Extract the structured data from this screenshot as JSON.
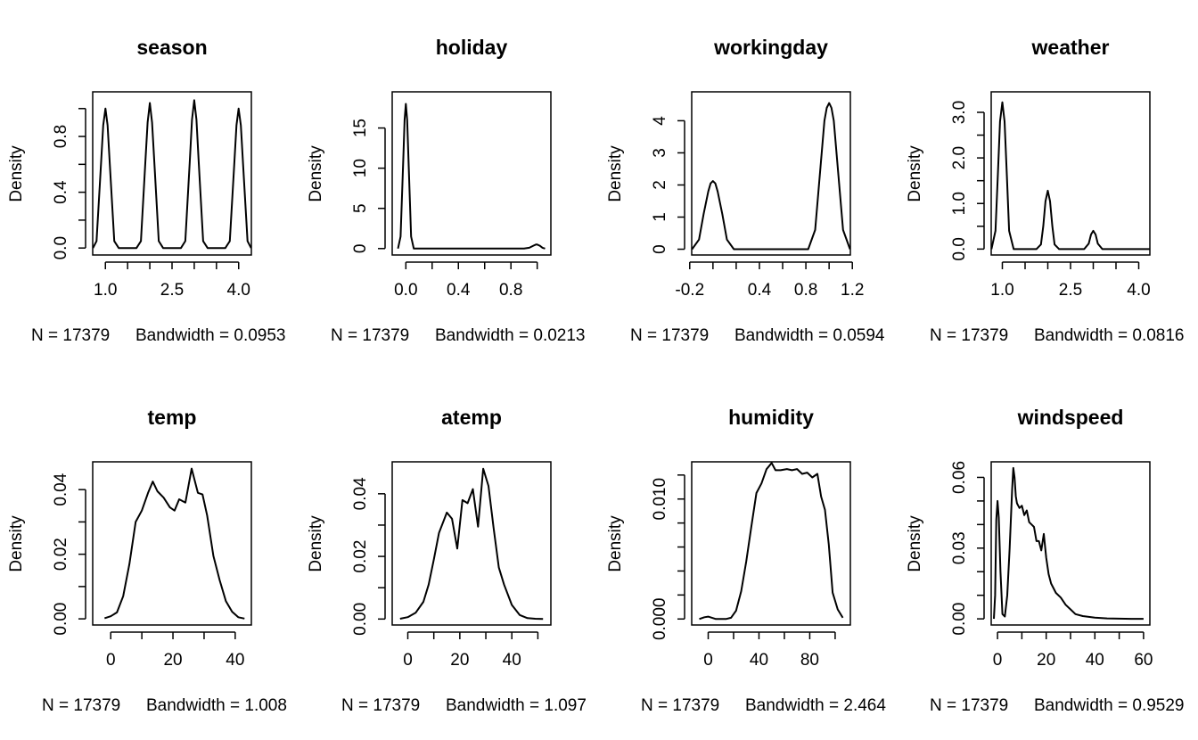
{
  "chart_data": [
    {
      "type": "line",
      "title": "season",
      "ylabel": "Density",
      "xlabel_n": "N = 17379",
      "xlabel_bw": "Bandwidth = 0.0953",
      "xlim": [
        0.714,
        4.286
      ],
      "ylim": [
        -0.05,
        1.12
      ],
      "xticks": [
        1,
        1.5,
        2,
        2.5,
        3,
        3.5,
        4
      ],
      "xtick_labels": [
        "1.0",
        "",
        "",
        "2.5",
        "",
        "",
        "4.0"
      ],
      "yticks": [
        0,
        0.2,
        0.4,
        0.6,
        0.8,
        1.0
      ],
      "ytick_labels": [
        "0.0",
        "",
        "0.4",
        "",
        "0.8",
        ""
      ],
      "x": [
        0.72,
        0.8,
        0.9,
        0.95,
        1.0,
        1.05,
        1.1,
        1.2,
        1.3,
        1.5,
        1.7,
        1.8,
        1.9,
        1.95,
        2.0,
        2.05,
        2.1,
        2.2,
        2.3,
        2.5,
        2.7,
        2.8,
        2.9,
        2.95,
        3.0,
        3.05,
        3.1,
        3.2,
        3.3,
        3.5,
        3.7,
        3.8,
        3.9,
        3.95,
        4.0,
        4.05,
        4.1,
        4.2,
        4.28
      ],
      "y": [
        0.0,
        0.05,
        0.6,
        0.88,
        1.0,
        0.88,
        0.6,
        0.05,
        0.0,
        0.0,
        0.0,
        0.05,
        0.62,
        0.9,
        1.04,
        0.9,
        0.62,
        0.05,
        0.0,
        0.0,
        0.0,
        0.05,
        0.62,
        0.92,
        1.06,
        0.92,
        0.62,
        0.05,
        0.0,
        0.0,
        0.0,
        0.05,
        0.6,
        0.88,
        1.0,
        0.88,
        0.6,
        0.05,
        0.0
      ]
    },
    {
      "type": "line",
      "title": "holiday",
      "ylabel": "Density",
      "xlabel_n": "N = 17379",
      "xlabel_bw": "Bandwidth = 0.0213",
      "xlim": [
        -0.104,
        1.104
      ],
      "ylim": [
        -0.8,
        19.5
      ],
      "xticks": [
        0,
        0.2,
        0.4,
        0.6,
        0.8,
        1.0
      ],
      "xtick_labels": [
        "0.0",
        "",
        "0.4",
        "",
        "0.8",
        ""
      ],
      "yticks": [
        0,
        5,
        10,
        15
      ],
      "ytick_labels": [
        "0",
        "5",
        "10",
        "15"
      ],
      "x": [
        -0.06,
        -0.04,
        -0.02,
        -0.01,
        0.0,
        0.01,
        0.02,
        0.04,
        0.06,
        0.1,
        0.5,
        0.9,
        0.94,
        0.97,
        0.99,
        1.0,
        1.02,
        1.04,
        1.06
      ],
      "y": [
        0.0,
        1.5,
        11.0,
        16.0,
        18.0,
        16.0,
        11.0,
        1.5,
        0.0,
        0.0,
        0.0,
        0.0,
        0.1,
        0.35,
        0.5,
        0.5,
        0.35,
        0.1,
        0.0
      ]
    },
    {
      "type": "line",
      "title": "workingday",
      "ylabel": "Density",
      "xlabel_n": "N = 17379",
      "xlabel_bw": "Bandwidth = 0.0594",
      "xlim": [
        -0.183,
        1.183
      ],
      "ylim": [
        -0.18,
        4.9
      ],
      "xticks": [
        -0.2,
        0.0,
        0.2,
        0.4,
        0.6,
        0.8,
        1.0,
        1.2
      ],
      "xtick_labels": [
        "-0.2",
        "",
        "",
        "0.4",
        "",
        "0.8",
        "",
        "1.2"
      ],
      "yticks": [
        0,
        1,
        2,
        3,
        4
      ],
      "ytick_labels": [
        "0",
        "1",
        "2",
        "3",
        "4"
      ],
      "x": [
        -0.18,
        -0.12,
        -0.08,
        -0.04,
        -0.02,
        0.0,
        0.02,
        0.04,
        0.08,
        0.12,
        0.18,
        0.5,
        0.82,
        0.88,
        0.92,
        0.96,
        0.98,
        1.0,
        1.02,
        1.04,
        1.08,
        1.12,
        1.18
      ],
      "y": [
        0.0,
        0.3,
        1.1,
        1.8,
        2.05,
        2.12,
        2.05,
        1.8,
        1.1,
        0.3,
        0.0,
        0.0,
        0.0,
        0.6,
        2.3,
        4.0,
        4.4,
        4.55,
        4.4,
        4.0,
        2.3,
        0.6,
        0.0
      ]
    },
    {
      "type": "line",
      "title": "weather",
      "ylabel": "Density",
      "xlabel_n": "N = 17379",
      "xlabel_bw": "Bandwidth = 0.0816",
      "xlim": [
        0.755,
        4.245
      ],
      "ylim": [
        -0.13,
        3.45
      ],
      "xticks": [
        1,
        1.5,
        2,
        2.5,
        3,
        3.5,
        4
      ],
      "xtick_labels": [
        "1.0",
        "",
        "",
        "2.5",
        "",
        "",
        "4.0"
      ],
      "yticks": [
        0,
        0.5,
        1.0,
        1.5,
        2.0,
        2.5,
        3.0
      ],
      "ytick_labels": [
        "0.0",
        "",
        "1.0",
        "",
        "2.0",
        "",
        "3.0"
      ],
      "x": [
        0.76,
        0.85,
        0.9,
        0.95,
        1.0,
        1.05,
        1.1,
        1.15,
        1.25,
        1.5,
        1.75,
        1.85,
        1.9,
        1.95,
        2.0,
        2.05,
        2.1,
        2.15,
        2.25,
        2.5,
        2.8,
        2.9,
        2.95,
        3.0,
        3.05,
        3.1,
        3.2,
        3.6,
        4.0,
        4.24
      ],
      "y": [
        0.0,
        0.4,
        1.6,
        2.8,
        3.22,
        2.8,
        1.6,
        0.4,
        0.0,
        0.0,
        0.0,
        0.1,
        0.5,
        1.05,
        1.28,
        1.05,
        0.5,
        0.1,
        0.0,
        0.0,
        0.0,
        0.12,
        0.32,
        0.4,
        0.32,
        0.12,
        0.0,
        0.0,
        0.0,
        0.0
      ]
    },
    {
      "type": "line",
      "title": "temp",
      "ylabel": "Density",
      "xlabel_n": "N = 17379",
      "xlabel_bw": "Bandwidth = 1.008",
      "xlim": [
        -5.8,
        45.2
      ],
      "ylim": [
        -0.0019,
        0.0486
      ],
      "xticks": [
        0,
        10,
        20,
        30,
        40
      ],
      "xtick_labels": [
        "0",
        "",
        "20",
        "",
        "40"
      ],
      "yticks": [
        0,
        0.01,
        0.02,
        0.03,
        0.04
      ],
      "ytick_labels": [
        "0.00",
        "",
        "0.02",
        "",
        "0.04"
      ],
      "x": [
        -2,
        0,
        2,
        4,
        6,
        8,
        10,
        12,
        13.5,
        15,
        17,
        19,
        20.5,
        22,
        24,
        26,
        28,
        29.5,
        31,
        33,
        35,
        37,
        39,
        41,
        43
      ],
      "y": [
        0.0002,
        0.0008,
        0.002,
        0.007,
        0.017,
        0.03,
        0.0335,
        0.039,
        0.0425,
        0.0395,
        0.0375,
        0.0345,
        0.0335,
        0.037,
        0.036,
        0.0465,
        0.039,
        0.0385,
        0.032,
        0.0195,
        0.012,
        0.0055,
        0.0022,
        0.0005,
        0.0001
      ]
    },
    {
      "type": "line",
      "title": "atemp",
      "ylabel": "Density",
      "xlabel_n": "N = 17379",
      "xlabel_bw": "Bandwidth = 1.097",
      "xlim": [
        -6.0,
        55.0
      ],
      "ylim": [
        -0.0019,
        0.0502
      ],
      "xticks": [
        0,
        10,
        20,
        30,
        40,
        50
      ],
      "xtick_labels": [
        "0",
        "",
        "20",
        "",
        "40",
        ""
      ],
      "yticks": [
        0,
        0.01,
        0.02,
        0.03,
        0.04
      ],
      "ytick_labels": [
        "0.00",
        "",
        "0.02",
        "",
        "0.04"
      ],
      "x": [
        -3,
        0,
        3,
        6,
        8,
        10,
        12,
        15,
        17,
        19,
        21,
        23,
        25,
        27,
        29,
        31,
        33,
        35,
        37,
        40,
        43,
        46,
        49,
        52
      ],
      "y": [
        0.0001,
        0.0006,
        0.002,
        0.0055,
        0.011,
        0.019,
        0.0275,
        0.034,
        0.032,
        0.0225,
        0.038,
        0.037,
        0.0415,
        0.0295,
        0.048,
        0.0425,
        0.029,
        0.0165,
        0.011,
        0.0045,
        0.0013,
        0.0003,
        0.0001,
        0.0
      ]
    },
    {
      "type": "line",
      "title": "humidity",
      "ylabel": "Density",
      "xlabel_n": "N = 17379",
      "xlabel_bw": "Bandwidth = 2.464",
      "xlim": [
        -13.0,
        112.0
      ],
      "ylim": [
        -0.0005,
        0.0131
      ],
      "xticks": [
        0,
        20,
        40,
        60,
        80,
        100
      ],
      "xtick_labels": [
        "0",
        "",
        "40",
        "",
        "80",
        ""
      ],
      "yticks": [
        0,
        0.002,
        0.004,
        0.006,
        0.008,
        0.01,
        0.012
      ],
      "ytick_labels": [
        "0.000",
        "",
        "",
        "",
        "",
        "0.010",
        ""
      ],
      "x": [
        -7,
        -3,
        0,
        3,
        6,
        10,
        14,
        18,
        22,
        26,
        30,
        34,
        38,
        42,
        46,
        50,
        53,
        57,
        62,
        66,
        70,
        74,
        78,
        82,
        86,
        89,
        92,
        95,
        98,
        102,
        106
      ],
      "y": [
        0.0,
        0.00015,
        0.0002,
        0.0001,
        0.0,
        0.0,
        0.0,
        0.0001,
        0.0007,
        0.0023,
        0.0048,
        0.0077,
        0.0105,
        0.0113,
        0.0125,
        0.013,
        0.0124,
        0.0124,
        0.0125,
        0.0124,
        0.0125,
        0.0121,
        0.0122,
        0.0118,
        0.0121,
        0.0102,
        0.0091,
        0.0062,
        0.0022,
        0.0008,
        0.0001
      ]
    },
    {
      "type": "line",
      "title": "windspeed",
      "ylabel": "Density",
      "xlabel_n": "N = 17379",
      "xlabel_bw": "Bandwidth = 0.9529",
      "xlim": [
        -2.6,
        62.6
      ],
      "ylim": [
        -0.0026,
        0.0666
      ],
      "xticks": [
        0,
        10,
        20,
        30,
        40,
        50,
        60
      ],
      "xtick_labels": [
        "0",
        "",
        "20",
        "",
        "40",
        "",
        "60"
      ],
      "yticks": [
        0,
        0.01,
        0.02,
        0.03,
        0.04,
        0.05,
        0.06
      ],
      "ytick_labels": [
        "0.00",
        "",
        "",
        "0.03",
        "",
        "",
        "0.06"
      ],
      "x": [
        -1.5,
        -1,
        -0.5,
        0,
        0.5,
        1.2,
        2,
        3,
        4,
        5,
        6,
        6.5,
        7,
        7.5,
        8,
        9,
        10,
        11,
        12,
        13,
        14,
        15,
        16,
        17,
        18,
        19,
        20,
        21,
        22,
        24,
        26,
        28,
        30,
        32,
        35,
        40,
        45,
        50,
        55,
        60
      ],
      "y": [
        0.0,
        0.01,
        0.042,
        0.05,
        0.043,
        0.02,
        0.002,
        0.001,
        0.01,
        0.03,
        0.055,
        0.064,
        0.06,
        0.052,
        0.049,
        0.047,
        0.048,
        0.044,
        0.046,
        0.041,
        0.04,
        0.039,
        0.033,
        0.033,
        0.029,
        0.036,
        0.026,
        0.019,
        0.015,
        0.011,
        0.009,
        0.006,
        0.004,
        0.002,
        0.0012,
        0.0005,
        0.0002,
        0.0001,
        0.0,
        0.0
      ]
    }
  ]
}
